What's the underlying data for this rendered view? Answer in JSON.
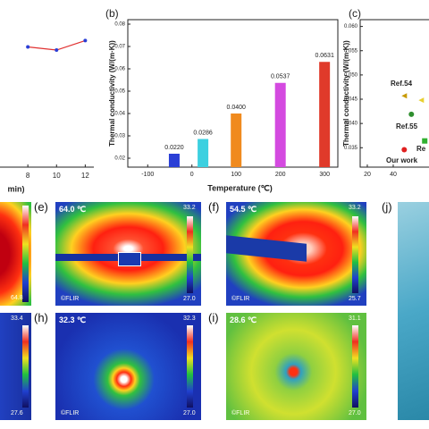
{
  "chart_data": [
    {
      "type": "line",
      "x": [
        8,
        10,
        12
      ],
      "xlim": [
        6.06,
        12.6
      ],
      "xticks": [
        8,
        10,
        12
      ],
      "xlabel": "min)",
      "ylim": [
        0,
        100
      ],
      "line_color": "#e03030",
      "marker_color": "#2a3fd6",
      "values": [
        76,
        74,
        80
      ]
    },
    {
      "type": "bar",
      "panel": "(b)",
      "x": [
        -40,
        25,
        100,
        200,
        300
      ],
      "values": [
        0.022,
        0.0286,
        0.04,
        0.0537,
        0.0631
      ],
      "value_labels": [
        "0.0220",
        "0.0286",
        "0.0400",
        "0.0537",
        "0.0631"
      ],
      "colors": [
        "#2a3fd6",
        "#3cd0e0",
        "#f08a1e",
        "#d44ae0",
        "#e03a2a"
      ],
      "xlim": [
        -145,
        330
      ],
      "xticks": [
        -100,
        0,
        100,
        200,
        300
      ],
      "ylim": [
        0.016,
        0.082
      ],
      "yticks": [
        0.02,
        0.03,
        0.04,
        0.05,
        0.06,
        0.07,
        0.08
      ],
      "xlabel": "Temperature (℃)",
      "ylabel": "Thermal conductivity (W/(m·K))"
    },
    {
      "type": "scatter",
      "panel": "(c)",
      "xlim": [
        14.5,
        67.6
      ],
      "xticks": [
        20,
        40
      ],
      "ylim": [
        0.031,
        0.0614
      ],
      "yticks": [
        {
          "value": 0.06,
          "label": "0.060"
        },
        0.055,
        {
          "value": 0.05,
          "label": "0.050"
        },
        0.045,
        {
          "value": 0.04,
          "label": "0.040"
        },
        0.035
      ],
      "ylabel": "Thermal conductivity (W/(m·K))",
      "points": [
        {
          "x": 48.5,
          "y": 0.0457,
          "color": "#c89a00",
          "marker": "triangle"
        },
        {
          "x": 61.6,
          "y": 0.0448,
          "color": "#e8d030",
          "marker": "triangle"
        },
        {
          "x": 54,
          "y": 0.0419,
          "color": "#2f8f2f",
          "marker": "circle"
        },
        {
          "x": 48.5,
          "y": 0.0346,
          "color": "#e02020",
          "marker": "circle"
        },
        {
          "x": 64.3,
          "y": 0.0364,
          "color": "#30b030",
          "marker": "square"
        }
      ],
      "annotations": [
        "Ref.54",
        "Ref.55",
        "Re",
        "Our work"
      ]
    }
  ],
  "images": {
    "d": {
      "min": "64.8"
    },
    "e": {
      "panel": "(e)",
      "temp": "64.0 ℃",
      "max": "33.2",
      "min": "27.0",
      "brand": "©FLIR"
    },
    "f": {
      "panel": "(f)",
      "temp": "54.5 ℃",
      "max": "33.2",
      "min": "25.7",
      "brand": "©FLIR"
    },
    "g": {
      "max": "33.4",
      "min": "27.6"
    },
    "h": {
      "panel": "(h)",
      "temp": "32.3 ℃",
      "max": "32.3",
      "min": "27.0",
      "brand": "©FLIR"
    },
    "i": {
      "panel": "(i)",
      "temp": "28.6 ℃",
      "max": "31.1",
      "min": "27.0",
      "brand": "©FLIR"
    },
    "j": {
      "panel": "(j)"
    }
  }
}
